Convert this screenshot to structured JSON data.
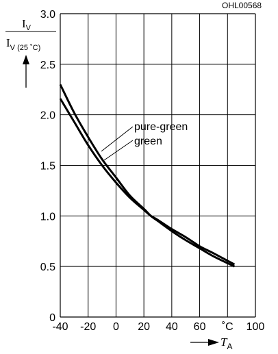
{
  "chart_data": {
    "type": "line",
    "figure_code": "OHL00568",
    "ylabel": {
      "numerator": "I",
      "numerator_sub": "V",
      "denominator": "I",
      "denominator_sub": "V (25 ˚C)"
    },
    "xlabel": {
      "main": "T",
      "sub": "A"
    },
    "xlim": [
      -40,
      100
    ],
    "ylim": [
      0,
      3.0
    ],
    "xticks": [
      "-40",
      "-20",
      "0",
      "20",
      "40",
      "60",
      "˚C",
      "100"
    ],
    "yticks": [
      "0",
      "0.5",
      "1.0",
      "1.5",
      "2.0",
      "2.5",
      "3.0"
    ],
    "grid": true,
    "series": [
      {
        "name": "pure-green",
        "x": [
          -40,
          -30,
          -20,
          -10,
          0,
          10,
          20,
          25,
          30,
          40,
          50,
          60,
          70,
          85
        ],
        "y": [
          2.3,
          2.02,
          1.78,
          1.56,
          1.38,
          1.2,
          1.07,
          1.0,
          0.95,
          0.85,
          0.76,
          0.68,
          0.6,
          0.5
        ]
      },
      {
        "name": "green",
        "x": [
          -40,
          -30,
          -20,
          -10,
          0,
          10,
          20,
          25,
          30,
          40,
          50,
          60,
          70,
          85
        ],
        "y": [
          2.16,
          1.93,
          1.7,
          1.5,
          1.33,
          1.18,
          1.06,
          1.0,
          0.96,
          0.87,
          0.79,
          0.7,
          0.63,
          0.52
        ]
      }
    ]
  }
}
